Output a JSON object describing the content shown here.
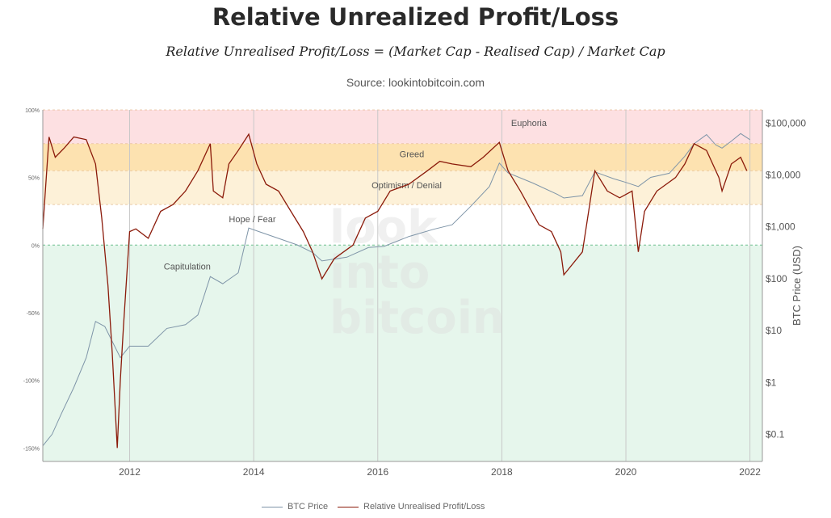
{
  "header": {
    "title": "Relative Unrealized Profit/Loss",
    "subtitle": "Relative Unrealised Profit/Loss = (Market Cap - Realised Cap) / Market Cap",
    "source": "Source: lookintobitcoin.com"
  },
  "colors": {
    "euphoria": "#fde0e2",
    "greed": "#fde2b0",
    "optimism": "#fdf1d8",
    "capitulation": "#e6f6ec",
    "nupl_line": "#8b1a0a",
    "btc_line": "#7f95a8",
    "zero_line": "#6fbf8f"
  },
  "chart_data": {
    "type": "line",
    "title": "Relative Unrealized Profit/Loss",
    "x_ticks": [
      "2012",
      "2014",
      "2016",
      "2018",
      "2020",
      "2022"
    ],
    "x_range": [
      2010.6,
      2022.2
    ],
    "y_left": {
      "ylim": [
        -160,
        100
      ],
      "ticks": [
        100,
        50,
        0,
        -50,
        -100,
        -150
      ],
      "tick_labels": [
        "100%",
        "50%",
        "0%",
        "-50%",
        "-100%",
        "-150%"
      ]
    },
    "y_right": {
      "label": "BTC Price (USD)",
      "scale": "log",
      "ylim": [
        0.03,
        180000
      ],
      "ticks": [
        100000,
        10000,
        1000,
        100,
        10,
        1,
        0.1
      ],
      "tick_labels": [
        "$100,000",
        "$10,000",
        "$1,000",
        "$100",
        "$10",
        "$1",
        "$0.1"
      ]
    },
    "zones": [
      {
        "label": "Euphoria",
        "from": 75,
        "to": 100
      },
      {
        "label": "Greed",
        "from": 55,
        "to": 75
      },
      {
        "label": "Optimism / Denial",
        "from": 30,
        "to": 55
      },
      {
        "label": "Hope / Fear",
        "from": 0,
        "to": 30
      },
      {
        "label": "Capitulation",
        "from": -160,
        "to": 0
      }
    ],
    "series": [
      {
        "name": "BTC Price",
        "axis": "right",
        "x": [
          2010.6,
          2010.75,
          2010.9,
          2011.1,
          2011.3,
          2011.45,
          2011.6,
          2011.85,
          2012.0,
          2012.3,
          2012.6,
          2012.9,
          2013.1,
          2013.3,
          2013.5,
          2013.75,
          2013.92,
          2014.1,
          2014.4,
          2014.7,
          2014.95,
          2015.1,
          2015.5,
          2015.85,
          2016.1,
          2016.5,
          2016.9,
          2017.2,
          2017.5,
          2017.8,
          2017.96,
          2018.1,
          2018.5,
          2018.9,
          2019.0,
          2019.3,
          2019.5,
          2019.8,
          2020.0,
          2020.2,
          2020.4,
          2020.7,
          2020.95,
          2021.1,
          2021.3,
          2021.45,
          2021.55,
          2021.7,
          2021.85,
          2022.0
        ],
        "values": [
          0.06,
          0.1,
          0.25,
          0.8,
          3,
          15,
          12,
          3,
          5,
          5,
          11,
          13,
          20,
          110,
          80,
          130,
          950,
          800,
          600,
          450,
          320,
          220,
          260,
          400,
          420,
          650,
          900,
          1100,
          2500,
          6000,
          17000,
          11000,
          7000,
          4200,
          3600,
          4000,
          11500,
          8500,
          7200,
          6000,
          9000,
          10800,
          23000,
          40000,
          60000,
          38000,
          33000,
          45000,
          63000,
          48000
        ]
      },
      {
        "name": "Relative Unrealised Profit/Loss",
        "axis": "left",
        "x": [
          2010.6,
          2010.7,
          2010.8,
          2010.95,
          2011.1,
          2011.3,
          2011.45,
          2011.55,
          2011.65,
          2011.72,
          2011.8,
          2011.85,
          2011.9,
          2012.0,
          2012.1,
          2012.3,
          2012.5,
          2012.7,
          2012.9,
          2013.1,
          2013.3,
          2013.35,
          2013.5,
          2013.6,
          2013.75,
          2013.92,
          2014.05,
          2014.2,
          2014.4,
          2014.6,
          2014.8,
          2014.95,
          2015.1,
          2015.3,
          2015.6,
          2015.8,
          2016.0,
          2016.2,
          2016.5,
          2016.8,
          2017.0,
          2017.2,
          2017.5,
          2017.7,
          2017.96,
          2018.1,
          2018.3,
          2018.6,
          2018.8,
          2018.95,
          2019.0,
          2019.3,
          2019.5,
          2019.7,
          2019.9,
          2020.1,
          2020.2,
          2020.3,
          2020.5,
          2020.8,
          2020.95,
          2021.1,
          2021.3,
          2021.5,
          2021.55,
          2021.7,
          2021.85,
          2021.95
        ],
        "values": [
          12,
          80,
          65,
          72,
          80,
          78,
          60,
          20,
          -30,
          -80,
          -150,
          -100,
          -60,
          10,
          12,
          5,
          25,
          30,
          40,
          55,
          75,
          40,
          35,
          60,
          70,
          82,
          60,
          45,
          40,
          25,
          10,
          -5,
          -25,
          -10,
          0,
          20,
          25,
          40,
          45,
          55,
          62,
          60,
          58,
          65,
          76,
          55,
          40,
          15,
          10,
          -5,
          -22,
          -5,
          55,
          40,
          35,
          40,
          -5,
          25,
          40,
          50,
          60,
          75,
          70,
          50,
          40,
          60,
          65,
          55
        ]
      }
    ],
    "legend": {
      "position": "bottom-center"
    }
  }
}
